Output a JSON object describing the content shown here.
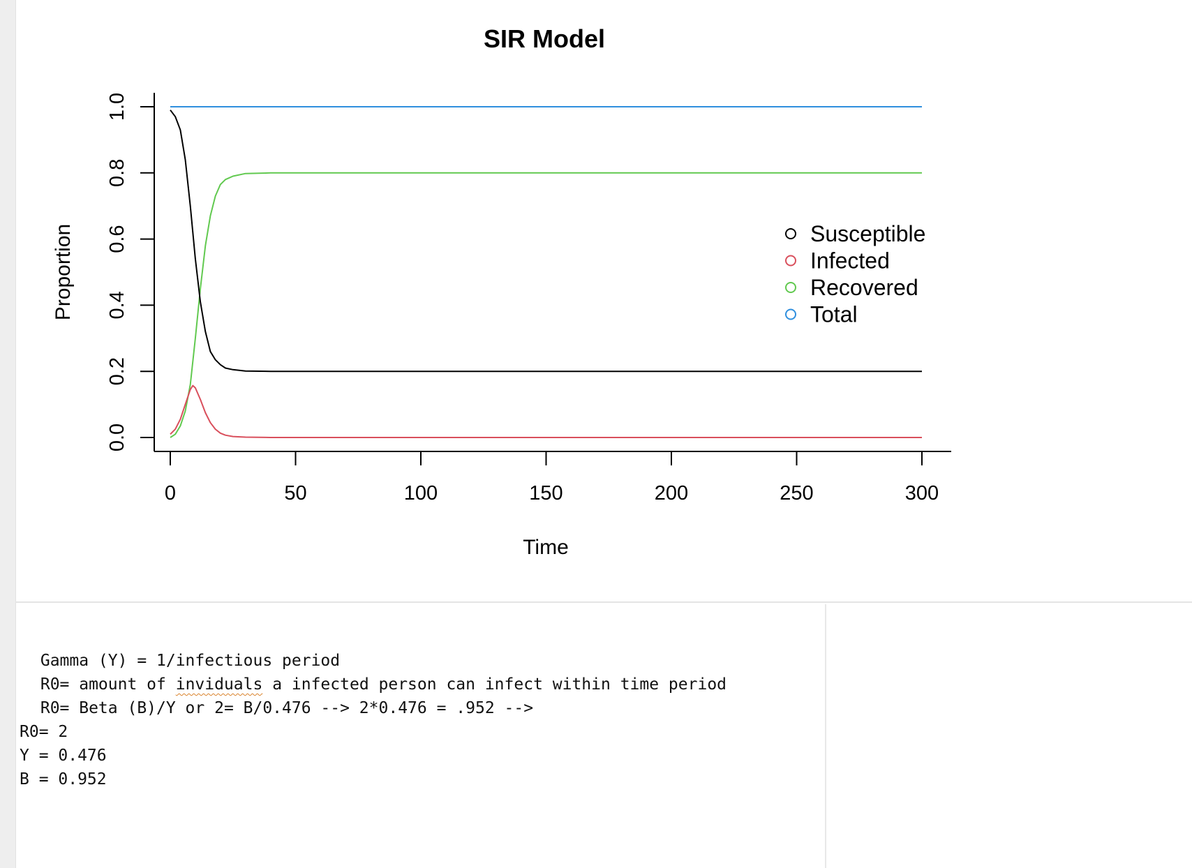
{
  "chart_data": {
    "type": "line",
    "title": "SIR Model",
    "xlabel": "Time",
    "ylabel": "Proportion",
    "xlim": [
      0,
      300
    ],
    "ylim": [
      0,
      1
    ],
    "x_ticks": [
      0,
      50,
      100,
      150,
      200,
      250,
      300
    ],
    "x_tick_labels": [
      "0",
      "50",
      "100",
      "150",
      "200",
      "250",
      "300"
    ],
    "y_ticks": [
      0,
      0.2,
      0.4,
      0.6,
      0.8,
      1.0
    ],
    "y_tick_labels": [
      "0.0",
      "0.2",
      "0.4",
      "0.6",
      "0.8",
      "1.0"
    ],
    "legend_position": "right",
    "grid": false,
    "series": [
      {
        "name": "Susceptible",
        "color": "#000000",
        "x": [
          0,
          2,
          4,
          6,
          8,
          10,
          12,
          14,
          16,
          18,
          20,
          22,
          25,
          30,
          40,
          60,
          100,
          150,
          200,
          250,
          300
        ],
        "values": [
          0.99,
          0.97,
          0.93,
          0.84,
          0.7,
          0.54,
          0.41,
          0.32,
          0.26,
          0.235,
          0.22,
          0.21,
          0.205,
          0.201,
          0.2,
          0.2,
          0.2,
          0.2,
          0.2,
          0.2,
          0.2
        ]
      },
      {
        "name": "Infected",
        "color": "#d94f5c",
        "x": [
          0,
          2,
          4,
          6,
          8,
          9,
          10,
          12,
          14,
          16,
          18,
          20,
          22,
          25,
          30,
          40,
          60,
          100,
          150,
          200,
          250,
          300
        ],
        "values": [
          0.01,
          0.025,
          0.055,
          0.1,
          0.145,
          0.157,
          0.15,
          0.115,
          0.075,
          0.045,
          0.025,
          0.013,
          0.007,
          0.003,
          0.001,
          0.0,
          0.0,
          0.0,
          0.0,
          0.0,
          0.0,
          0.0
        ]
      },
      {
        "name": "Recovered",
        "color": "#61c94f",
        "x": [
          0,
          2,
          4,
          6,
          8,
          10,
          12,
          14,
          16,
          18,
          20,
          22,
          25,
          30,
          40,
          60,
          100,
          150,
          200,
          250,
          300
        ],
        "values": [
          0.0,
          0.01,
          0.035,
          0.08,
          0.16,
          0.3,
          0.45,
          0.58,
          0.67,
          0.73,
          0.765,
          0.78,
          0.79,
          0.798,
          0.8,
          0.8,
          0.8,
          0.8,
          0.8,
          0.8,
          0.8
        ]
      },
      {
        "name": "Total",
        "color": "#2f8fde",
        "x": [
          0,
          300
        ],
        "values": [
          1.0,
          1.0
        ]
      }
    ]
  },
  "notes": {
    "line1": " Gamma (Y) = 1/infectious period",
    "line2_prefix": " R0= amount of ",
    "line2_misspelled": "inviduals",
    "line2_suffix": " a infected person can infect within time period",
    "line3": " R0= Beta (B)/Y or 2= B/0.476 --> 2*0.476 = .952 -->",
    "line4": "R0= 2",
    "line5": "Y = 0.476",
    "line6": "B = 0.952"
  }
}
